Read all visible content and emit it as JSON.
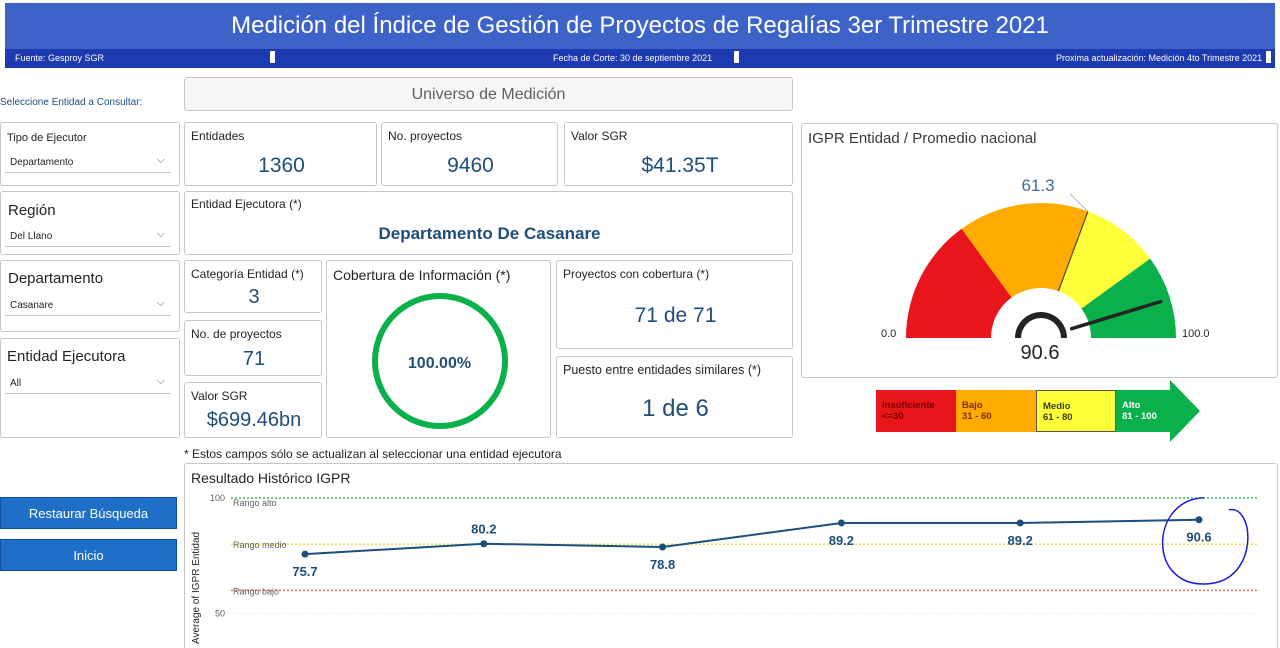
{
  "header": {
    "title": "Medición del Índice de Gestión de Proyectos de Regalías 3er Trimestre 2021",
    "source": "Fuente: Gesproy SGR",
    "cutoff": "Fecha de Corte: 30 de septiembre 2021",
    "next_update": "Proxima actualización: Medición 4to Trimestre 2021"
  },
  "filters": {
    "prompt": "Seleccione Entidad a Consultar:",
    "tipo_label": "Tipo de Ejecutor",
    "tipo_value": "Departamento",
    "region_label": "Región",
    "region_value": "Del Llano",
    "depto_label": "Departamento",
    "depto_value": "Casanare",
    "entidad_label": "Entidad Ejecutora",
    "entidad_value": "All"
  },
  "buttons": {
    "restore": "Restaurar Búsqueda",
    "home": "Inicio"
  },
  "universe": {
    "title": "Universo de Medición",
    "entidades_label": "Entidades",
    "entidades_value": "1360",
    "proyectos_label": "No. proyectos",
    "proyectos_value": "9460",
    "valor_label": "Valor SGR",
    "valor_value": "$41.35T"
  },
  "entity": {
    "label": "Entidad Ejecutora (*)",
    "name": "Departamento De Casanare",
    "categoria_label": "Categoría Entidad (*)",
    "categoria_value": "3",
    "nproy_label": "No. de proyectos",
    "nproy_value": "71",
    "valor_label": "Valor SGR",
    "valor_value": "$699.46bn",
    "cobertura_label": "Cobertura de Información (*)",
    "cobertura_value": "100.00%",
    "proy_cob_label": "Proyectos con cobertura (*)",
    "proy_cob_value": "71 de 71",
    "puesto_label": "Puesto entre entidades similares (*)",
    "puesto_value": "1 de 6",
    "footnote": "* Estos campos sólo se actualizan al seleccionar una entidad ejecutora"
  },
  "gauge": {
    "title": "IGPR Entidad / Promedio nacional",
    "value": 90.6,
    "value_label": "90.6",
    "target": 61.3,
    "target_label": "61.3",
    "min_label": "0.0",
    "max_label": "100.0",
    "colors": {
      "red": "#e8151b",
      "orange": "#ffab00",
      "yellow": "#ffff3a",
      "green": "#0ab14a"
    }
  },
  "legend": [
    {
      "name": "Insuficiente",
      "range": "<=30"
    },
    {
      "name": "Bajo",
      "range": "31 - 60"
    },
    {
      "name": "Medio",
      "range": "61 - 80"
    },
    {
      "name": "Alto",
      "range": "81 - 100"
    }
  ],
  "chart_data": {
    "type": "line",
    "title": "Resultado Histórico IGPR",
    "ylabel": "Average of IGPR Entidad",
    "ylim": [
      0,
      100
    ],
    "yticks": [
      "100",
      "50"
    ],
    "series": [
      {
        "values": [
          75.7,
          80.2,
          78.8,
          89.2,
          89.2,
          90.6
        ]
      }
    ],
    "labels": [
      "75.7",
      "80.2",
      "78.8",
      "89.2",
      "89.2",
      "90.6"
    ],
    "bands": [
      {
        "name": "Rango alto",
        "y": 100,
        "color": "#3dbb5b"
      },
      {
        "name": "Rango medio",
        "y": 80,
        "color": "#e8e23a"
      },
      {
        "name": "Rango bajo",
        "y": 60,
        "color": "#f0706a"
      }
    ]
  }
}
